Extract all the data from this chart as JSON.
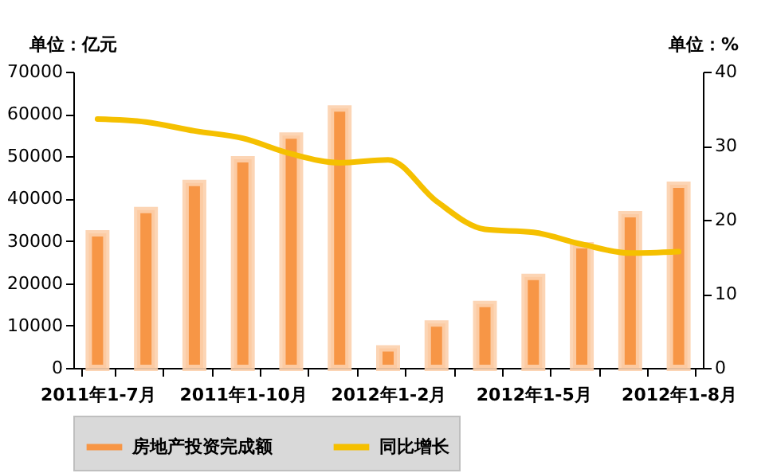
{
  "chart_data": {
    "type": "bar",
    "categories": [
      "2011年1-7月",
      null,
      null,
      "2011年1-10月",
      null,
      null,
      "2012年1-2月",
      null,
      null,
      "2012年1-5月",
      null,
      null,
      "2012年1-8月"
    ],
    "series": [
      {
        "name": "房地产投资完成额",
        "color": "#f79646",
        "values": [
          31800,
          37300,
          43700,
          49300,
          54900,
          61300,
          4600,
          10500,
          15100,
          21500,
          29000,
          36300,
          43300
        ]
      },
      {
        "name": "同比增长",
        "type": "line",
        "axis": "y2",
        "color": "#f5c000",
        "values": [
          33.6,
          33.2,
          32.0,
          31.0,
          28.9,
          27.7,
          28.1,
          22.5,
          18.7,
          18.3,
          16.7,
          15.5,
          15.7
        ]
      }
    ],
    "ylabel": "单位：亿元",
    "y2label": "单位：%",
    "ylim": [
      0,
      70000
    ],
    "yticks": [
      0,
      10000,
      20000,
      30000,
      40000,
      50000,
      60000,
      70000
    ],
    "y2lim": [
      0,
      40
    ],
    "y2ticks": [
      0,
      10,
      20,
      30,
      40
    ],
    "grid": false,
    "legend": "bottom"
  }
}
